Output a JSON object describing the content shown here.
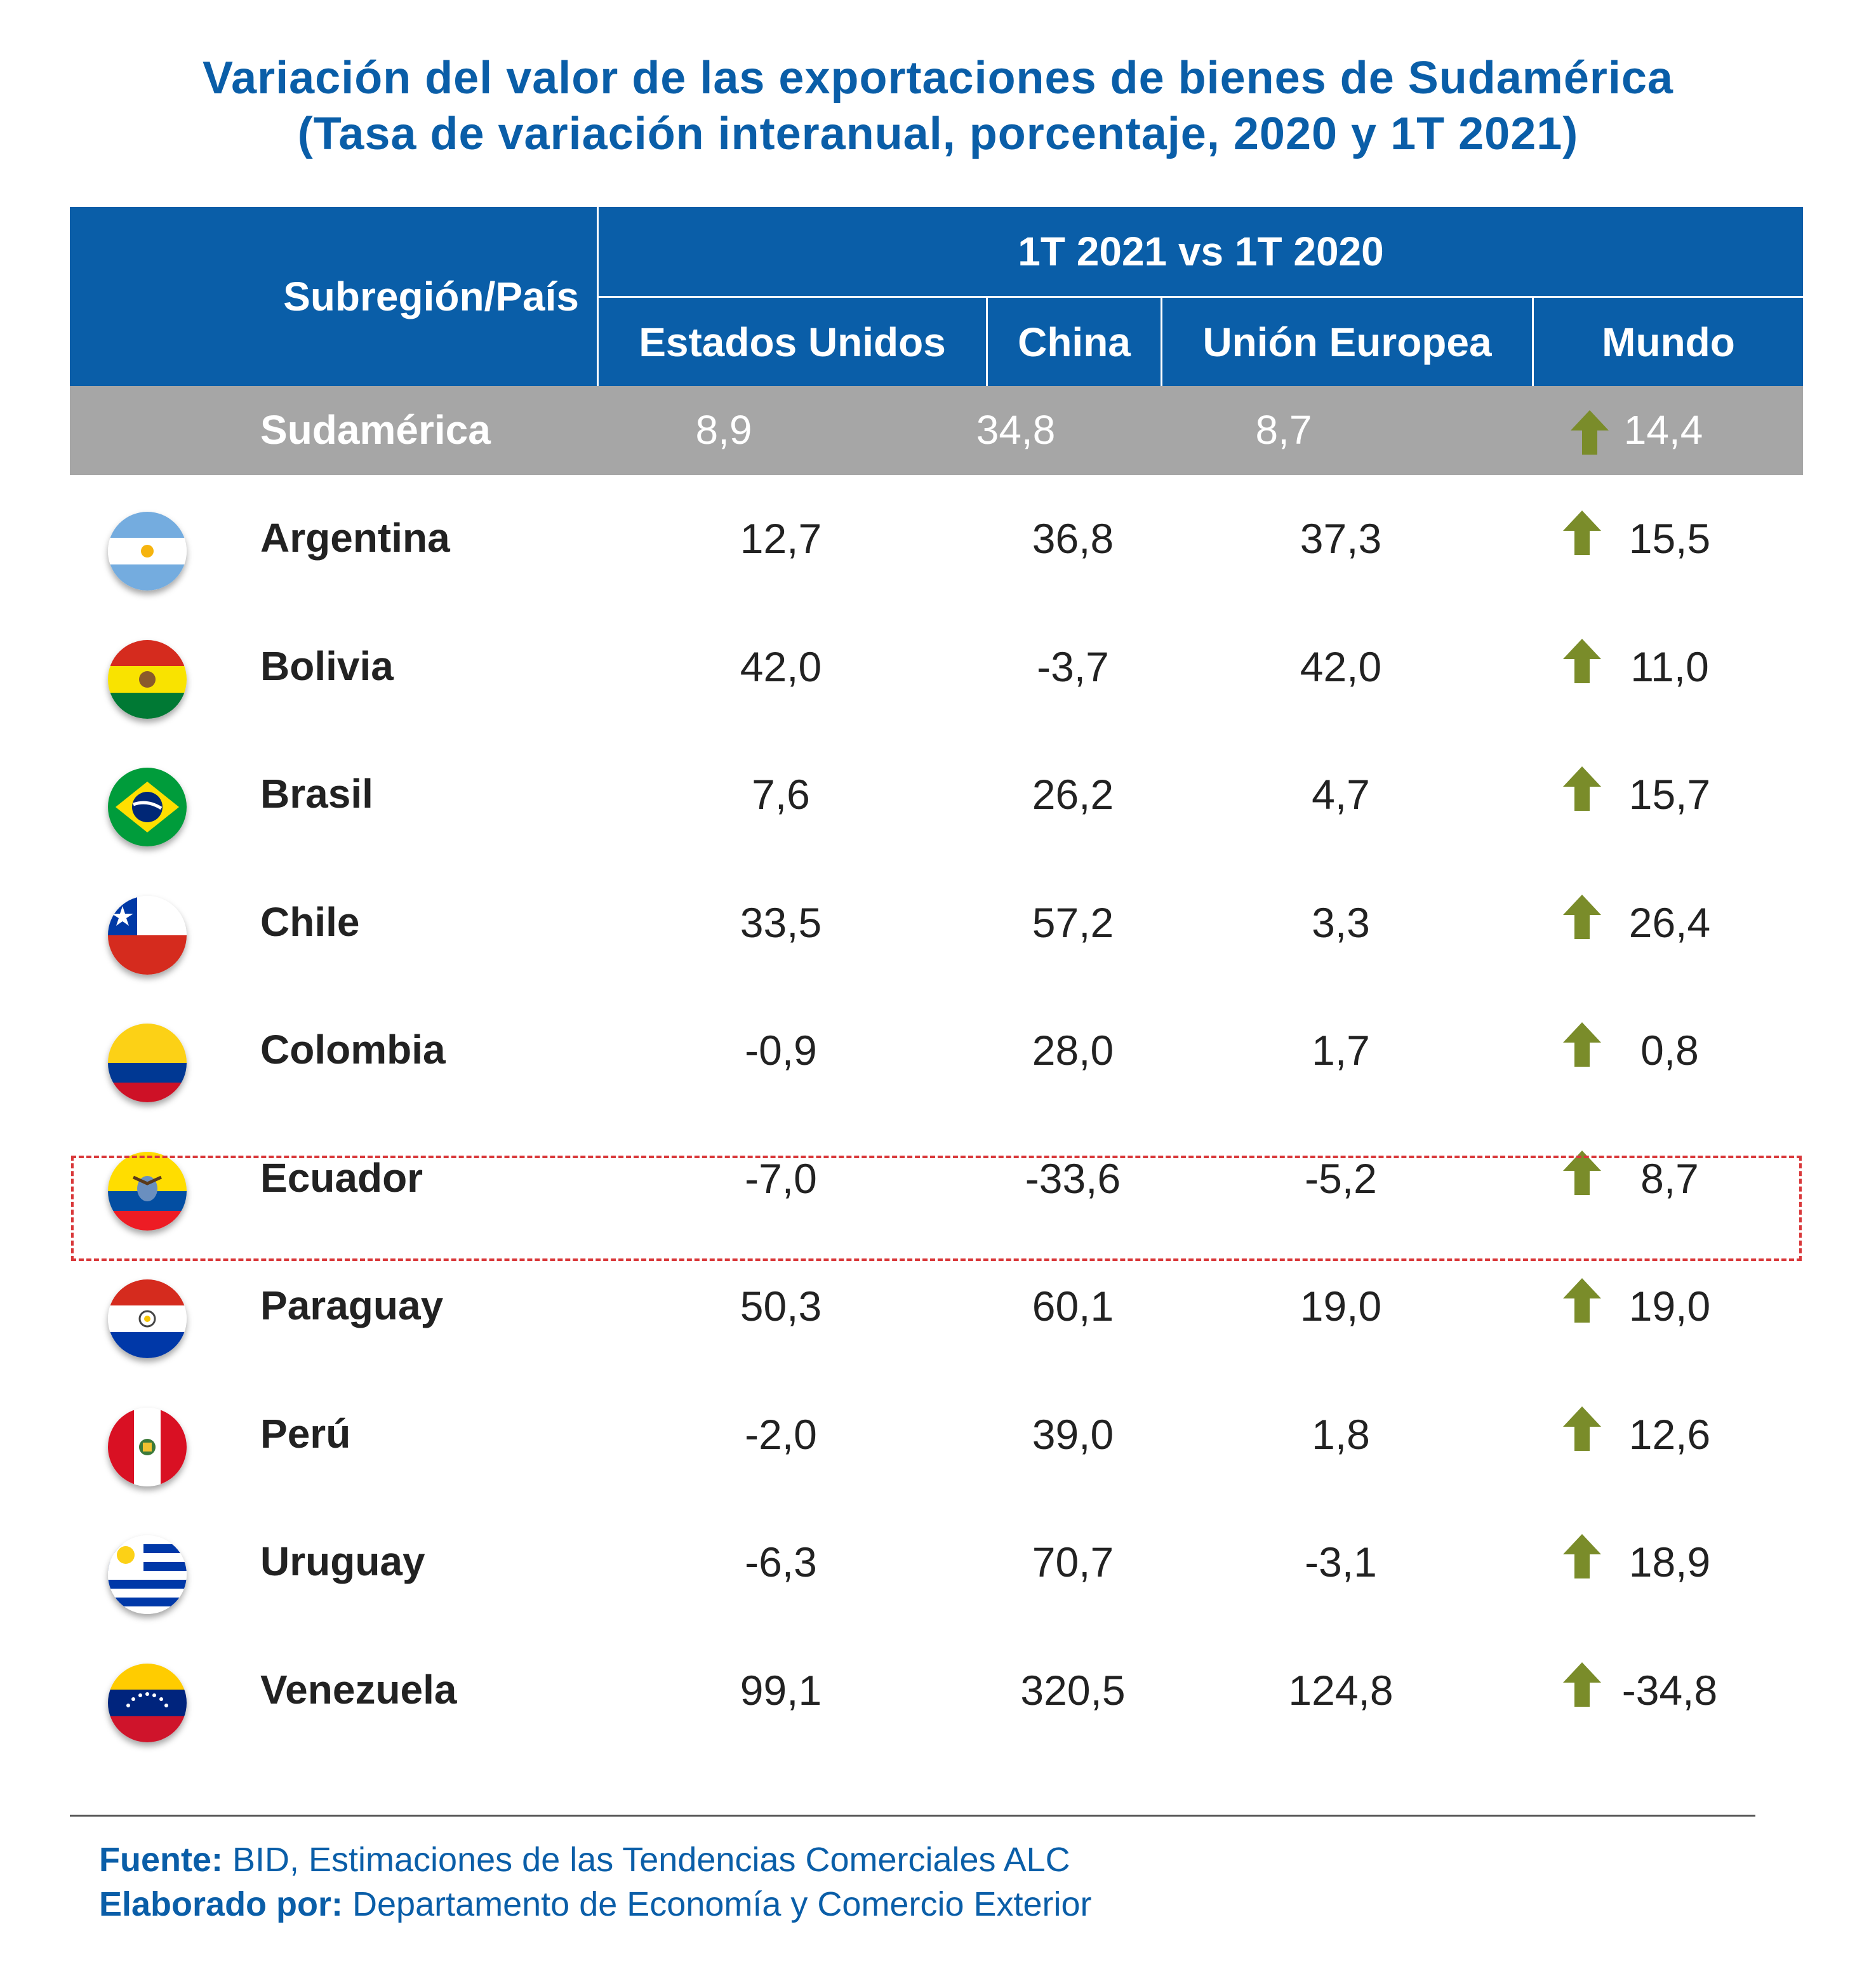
{
  "title": {
    "line1": "Variación del valor de las exportaciones de bienes de Sudamérica",
    "line2": "(Tasa de variación interanual, porcentaje, 2020 y 1T 2021)"
  },
  "chart_data": {
    "type": "table",
    "header": {
      "row_label": "Subregión/País",
      "group": "1T 2021 vs 1T 2020",
      "columns": [
        "Estados Unidos",
        "China",
        "Unión Europea",
        "Mundo"
      ]
    },
    "summary": {
      "name": "Sudamérica",
      "values": [
        "8,9",
        "34,8",
        "8,7",
        "14,4"
      ]
    },
    "rows": [
      {
        "name": "Argentina",
        "flag": "argentina-flag-icon",
        "values": [
          "12,7",
          "36,8",
          "37,3",
          "15,5"
        ]
      },
      {
        "name": "Bolivia",
        "flag": "bolivia-flag-icon",
        "values": [
          "42,0",
          "-3,7",
          "42,0",
          "11,0"
        ]
      },
      {
        "name": "Brasil",
        "flag": "brazil-flag-icon",
        "values": [
          "7,6",
          "26,2",
          "4,7",
          "15,7"
        ]
      },
      {
        "name": "Chile",
        "flag": "chile-flag-icon",
        "values": [
          "33,5",
          "57,2",
          "3,3",
          "26,4"
        ]
      },
      {
        "name": "Colombia",
        "flag": "colombia-flag-icon",
        "values": [
          "-0,9",
          "28,0",
          "1,7",
          "0,8"
        ]
      },
      {
        "name": "Ecuador",
        "flag": "ecuador-flag-icon",
        "values": [
          "-7,0",
          "-33,6",
          "-5,2",
          "8,7"
        ],
        "highlighted": true
      },
      {
        "name": "Paraguay",
        "flag": "paraguay-flag-icon",
        "values": [
          "50,3",
          "60,1",
          "19,0",
          "19,0"
        ]
      },
      {
        "name": "Perú",
        "flag": "peru-flag-icon",
        "values": [
          "-2,0",
          "39,0",
          "1,8",
          "12,6"
        ]
      },
      {
        "name": "Uruguay",
        "flag": "uruguay-flag-icon",
        "values": [
          "-6,3",
          "70,7",
          "-3,1",
          "18,9"
        ]
      },
      {
        "name": "Venezuela",
        "flag": "venezuela-flag-icon",
        "values": [
          "99,1",
          "320,5",
          "124,8",
          "-34,8"
        ]
      }
    ],
    "mundo_indicator": "up-arrow-icon"
  },
  "colors": {
    "header_bg": "#0a5ea8",
    "summary_bg": "#a6a6a6",
    "arrow": "#7a8c2a",
    "highlight_border": "#d9383a"
  },
  "footer": {
    "source_label": "Fuente:",
    "source_text": " BID, Estimaciones de las Tendencias Comerciales ALC",
    "prepared_label": "Elaborado por:",
    "prepared_text": " Departamento de Economía y Comercio Exterior"
  }
}
